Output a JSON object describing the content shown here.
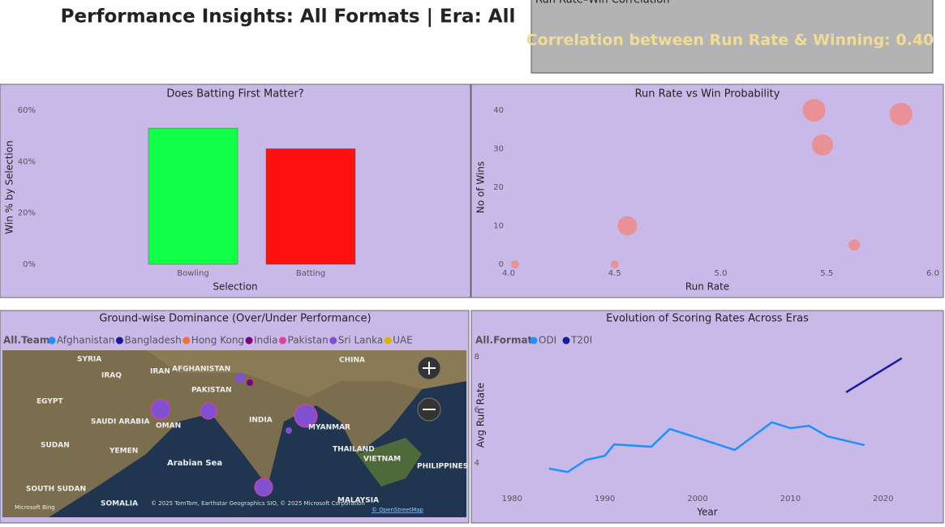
{
  "title": "Performance Insights: All Formats | Era: All",
  "card": {
    "title": "Run Rate–Win Correlation",
    "text": "Correlation between Run Rate & Winning: 0.40"
  },
  "chart_data": [
    {
      "type": "bar",
      "title": "Does Batting First Matter?",
      "x_label": "Selection",
      "y_label": "Win % by Selection",
      "categories": [
        "Bowling",
        "Batting"
      ],
      "values": [
        53,
        45
      ],
      "colors": [
        "#11ff44",
        "#ff1111"
      ],
      "ylim": [
        0,
        60
      ],
      "yticks": [
        {
          "value": 0,
          "label": "0%"
        },
        {
          "value": 20,
          "label": "20%"
        },
        {
          "value": 40,
          "label": "40%"
        },
        {
          "value": 60,
          "label": "60%"
        }
      ]
    },
    {
      "type": "scatter",
      "title": "Run Rate vs Win Probability",
      "x_label": "Run Rate",
      "y_label": "No of Wins",
      "x": [
        4.03,
        4.5,
        4.56,
        5.44,
        5.48,
        5.63,
        5.85
      ],
      "values": [
        0,
        0,
        10,
        40,
        31,
        5,
        39
      ],
      "sizes": [
        5,
        5,
        12,
        14,
        13,
        7,
        14
      ],
      "color": "#f08a8a",
      "xlim": [
        4,
        6
      ],
      "xticks": [
        {
          "value": 4,
          "label": "4.0"
        },
        {
          "value": 4.5,
          "label": "4.5"
        },
        {
          "value": 5,
          "label": "5.0"
        },
        {
          "value": 5.5,
          "label": "5.5"
        },
        {
          "value": 6,
          "label": "6.0"
        }
      ],
      "ylim": [
        0,
        40
      ],
      "yticks": [
        0,
        10,
        20,
        30,
        40
      ]
    },
    {
      "type": "line",
      "title": "Evolution of Scoring Rates Across Eras",
      "x_label": "Year",
      "y_label": "Avg Run Rate",
      "legend_title": "All.Format",
      "series": [
        {
          "name": "ODI",
          "color": "#1e90ff",
          "x": [
            1984,
            1986,
            1988,
            1990,
            1991,
            1995,
            1997,
            2004,
            2008,
            2010,
            2012,
            2014,
            2018
          ],
          "values": [
            3.79,
            3.66,
            4.12,
            4.27,
            4.7,
            4.61,
            5.28,
            4.49,
            5.53,
            5.31,
            5.4,
            5.0,
            4.67
          ]
        },
        {
          "name": "T20I",
          "color": "#1a1aa0",
          "x": [
            2016,
            2022
          ],
          "values": [
            6.66,
            7.94
          ]
        }
      ],
      "xlim": [
        1977,
        2025
      ],
      "xticks": [
        1980,
        1990,
        2000,
        2010,
        2020
      ],
      "ylim": [
        3.3,
        8.3
      ],
      "yticks": [
        4,
        6,
        8
      ]
    }
  ],
  "map": {
    "title": "Ground-wise Dominance (Over/Under Performance)",
    "legend_title": "All.Team",
    "legend": [
      {
        "name": "Afghanistan",
        "color": "#1e90ff"
      },
      {
        "name": "Bangladesh",
        "color": "#1a1aa0"
      },
      {
        "name": "Hong Kong",
        "color": "#f07030"
      },
      {
        "name": "India",
        "color": "#800080"
      },
      {
        "name": "Pakistan",
        "color": "#e040a0"
      },
      {
        "name": "Sri Lanka",
        "color": "#8050d0"
      },
      {
        "name": "UAE",
        "color": "#e0b000"
      }
    ],
    "places": [
      "SYRIA",
      "IRAQ",
      "IRAN",
      "AFGHANISTAN",
      "PAKISTAN",
      "CHINA",
      "EGYPT",
      "SAUDI ARABIA",
      "OMAN",
      "INDIA",
      "MYANMAR",
      "SUDAN",
      "YEMEN",
      "Arabian Sea",
      "THAILAND",
      "VIETNAM",
      "PHILIPPINES",
      "SOUTH SUDAN",
      "SOMALIA",
      "MALAYSIA"
    ],
    "attribution": "© 2025 TomTom, Earthstar Geographics SIO, © 2025 Microsoft Corporation",
    "osm": "© OpenStreetMap",
    "brand": "Microsoft Bing"
  }
}
